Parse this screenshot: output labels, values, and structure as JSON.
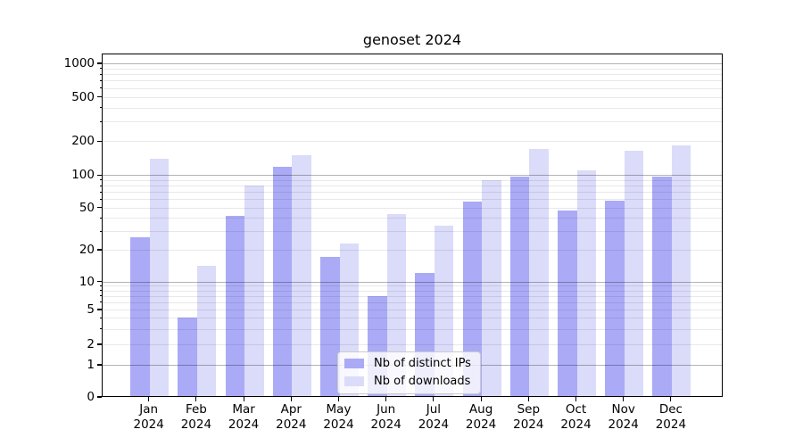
{
  "chart_data": {
    "type": "bar",
    "title": "genoset 2024",
    "categories": [
      "Jan",
      "Feb",
      "Mar",
      "Apr",
      "May",
      "Jun",
      "Jul",
      "Aug",
      "Sep",
      "Oct",
      "Nov",
      "Dec"
    ],
    "x_tick_year": "2024",
    "series": [
      {
        "name": "Nb of distinct IPs",
        "color": "#aaaaf6",
        "values": [
          26,
          4,
          42,
          118,
          17,
          7,
          12,
          57,
          97,
          47,
          58,
          97
        ]
      },
      {
        "name": "Nb of downloads",
        "color": "#dbdbfa",
        "values": [
          140,
          14,
          80,
          150,
          23,
          43,
          34,
          90,
          170,
          110,
          165,
          185
        ]
      }
    ],
    "y_tick_labels": [
      "0",
      "1",
      "2",
      "5",
      "10",
      "20",
      "50",
      "100",
      "200",
      "500",
      "1000"
    ],
    "y_scale": "log-like (linear below 1)",
    "ylim": [
      0,
      1200
    ],
    "grid": "horizontal; darker lines at 1, 10, 100, 1000; faint minor log lines",
    "legend": {
      "position": "lower center",
      "entries": [
        "Nb of distinct IPs",
        "Nb of downloads"
      ]
    },
    "colors": {
      "major_grid": "#b3b3b3",
      "minor_grid": "#e8e8e8",
      "axis": "#000000"
    }
  }
}
